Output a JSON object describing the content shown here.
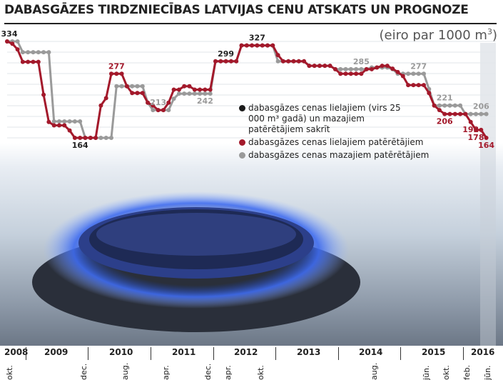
{
  "title": "DABASGĀZES TIRDZNIECĪBAS LATVIJAS CENU ATSKATS UN PROGNOZE",
  "unit": {
    "text": "(eiro par 1000 m",
    "sup": "3",
    "close": ")"
  },
  "legend": [
    {
      "label": "dabasgāzes cenas lielajiem (virs 25 000 m³ gadā) un mazajiem patērētājiem sakrīt",
      "color": "#1a1a1a"
    },
    {
      "label": "dabasgāzes cenas lielajiem patērētājiem",
      "color": "#a3192b"
    },
    {
      "label": "dabasgāzes cenas mazajiem patērētājiem",
      "color": "#9a9a9a"
    }
  ],
  "axis": {
    "years": [
      "2008",
      "2009",
      "2010",
      "2011",
      "2012",
      "2013",
      "2014",
      "2015",
      "2016"
    ],
    "months": [
      "okt.",
      "dec.",
      "aug.",
      "apr.",
      "dec.",
      "apr.",
      "okt.",
      "aug.",
      "jūn.",
      "okt.",
      "feb.",
      "jūn."
    ]
  },
  "chart_data": {
    "type": "line",
    "title": "Dabasgāzes tirdzniecības Latvijas cenu atskats un prognoze",
    "ylabel": "eiro par 1000 m3",
    "x_start": "2008-10",
    "x_end": "2016-06",
    "x_step": "month",
    "ylim": [
      160,
      340
    ],
    "series": [
      {
        "name": "dabasgāzes cenas lielajiem patērētājiem",
        "color": "#a3192b",
        "values": [
          334,
          330,
          320,
          298,
          298,
          298,
          298,
          240,
          192,
          186,
          186,
          186,
          177,
          164,
          164,
          164,
          164,
          164,
          221,
          234,
          277,
          277,
          277,
          255,
          243,
          243,
          243,
          226,
          221,
          213,
          213,
          226,
          249,
          249,
          255,
          255,
          249,
          249,
          249,
          249,
          299,
          299,
          299,
          299,
          299,
          327,
          327,
          327,
          327,
          327,
          327,
          327,
          310,
          299,
          299,
          299,
          299,
          299,
          291,
          291,
          291,
          291,
          291,
          285,
          277,
          277,
          277,
          277,
          277,
          285,
          285,
          288,
          291,
          291,
          286,
          280,
          273,
          257,
          257,
          257,
          257,
          243,
          221,
          213,
          206,
          206,
          206,
          206,
          206,
          192,
          178,
          178,
          164
        ]
      },
      {
        "name": "dabasgāzes cenas mazajiem patērētājiem",
        "color": "#9a9a9a",
        "values": [
          334,
          334,
          334,
          315,
          315,
          315,
          315,
          315,
          315,
          193,
          193,
          193,
          193,
          193,
          193,
          164,
          164,
          164,
          164,
          164,
          164,
          255,
          255,
          255,
          255,
          255,
          255,
          226,
          213,
          213,
          213,
          213,
          233,
          242,
          242,
          242,
          242,
          242,
          242,
          242,
          299,
          299,
          299,
          299,
          299,
          327,
          327,
          327,
          327,
          327,
          327,
          327,
          299,
          299,
          299,
          299,
          299,
          299,
          291,
          291,
          291,
          291,
          291,
          285,
          285,
          285,
          285,
          285,
          285,
          285,
          288,
          288,
          288,
          288,
          285,
          277,
          277,
          277,
          277,
          277,
          277,
          250,
          221,
          221,
          221,
          221,
          221,
          221,
          206,
          206,
          206,
          206,
          206
        ]
      }
    ],
    "annotations": [
      {
        "text": "334",
        "month": 0,
        "color": "#222"
      },
      {
        "text": "164",
        "month": 14,
        "color": "#222"
      },
      {
        "text": "277",
        "month": 21,
        "color": "#a3192b"
      },
      {
        "text": "213",
        "month": 29,
        "color": "#9a9a9a"
      },
      {
        "text": "242",
        "month": 38,
        "color": "#9a9a9a"
      },
      {
        "text": "299",
        "month": 42,
        "color": "#222"
      },
      {
        "text": "327",
        "month": 48,
        "color": "#222"
      },
      {
        "text": "285",
        "month": 68,
        "color": "#9a9a9a"
      },
      {
        "text": "277",
        "month": 79,
        "color": "#9a9a9a"
      },
      {
        "text": "221",
        "month": 84,
        "color": "#9a9a9a"
      },
      {
        "text": "206",
        "month": 91,
        "color": "#9a9a9a"
      },
      {
        "text": "206",
        "month": 84,
        "color": "#a3192b"
      },
      {
        "text": "192",
        "month": 89,
        "color": "#a3192b"
      },
      {
        "text": "178",
        "month": 90,
        "color": "#a3192b"
      },
      {
        "text": "164",
        "month": 92,
        "color": "#a3192b"
      }
    ]
  }
}
